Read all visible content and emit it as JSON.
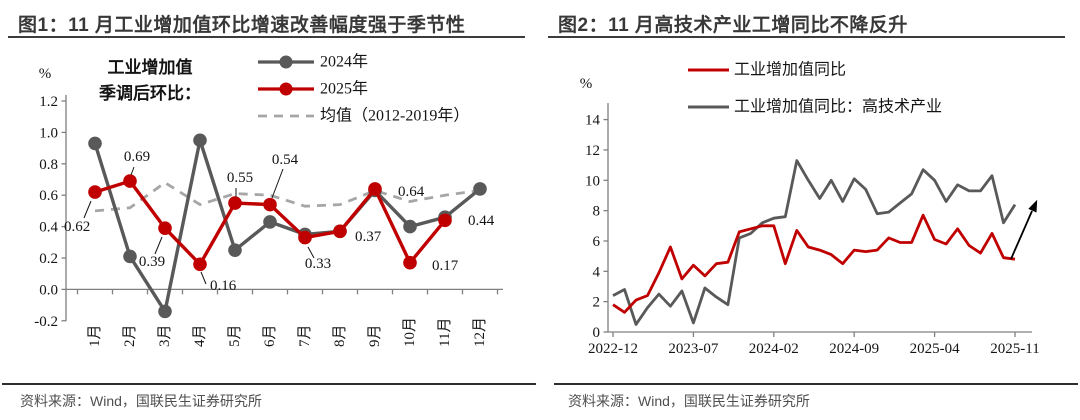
{
  "figure1": {
    "title": "图1：11 月工业增加值环比增速改善幅度强于季节性",
    "source": "资料来源：Wind，国联民生证券研究所"
  },
  "figure2": {
    "title": "图2：11 月高技术产业工增同比不降反升",
    "source": "资料来源：Wind，国联民生证券研究所"
  },
  "colors": {
    "red": "#C00000",
    "gray": "#595959",
    "mean_gray": "#A6A6A6",
    "axis": "#808080",
    "label_text": "#141414",
    "title_text": "#383838",
    "source_text": "#4F4F4F",
    "rule": "#2E2E2E",
    "arrow": "#000000"
  },
  "chart_data": [
    {
      "type": "line",
      "title": "工业增加值季调后环比",
      "unit_label": "%",
      "annotation_lines": [
        "工业增加值",
        "季调后环比："
      ],
      "categories": [
        "1月",
        "2月",
        "3月",
        "4月",
        "5月",
        "6月",
        "7月",
        "8月",
        "9月",
        "10月",
        "11月",
        "12月"
      ],
      "ylim": [
        -0.2,
        1.2
      ],
      "y_ticks": [
        "1.2",
        "1.0",
        "0.8",
        "0.6",
        "0.4",
        "0.2",
        "0.0",
        "-0.2"
      ],
      "grid": false,
      "legend_position": "top",
      "series": [
        {
          "name": "2024年",
          "color": "#595959",
          "marker": "circle",
          "line_style": "solid",
          "values": [
            0.93,
            0.21,
            -0.14,
            0.95,
            0.25,
            0.43,
            0.35,
            0.37,
            0.63,
            0.4,
            0.46,
            0.64
          ]
        },
        {
          "name": "2025年",
          "color": "#C00000",
          "marker": "circle",
          "line_style": "solid",
          "values": [
            0.62,
            0.69,
            0.39,
            0.16,
            0.55,
            0.54,
            0.33,
            0.37,
            0.64,
            0.17,
            0.44
          ],
          "point_labels": [
            "0.62",
            "0.69",
            "0.39",
            "0.16",
            "0.55",
            "0.54",
            "0.33",
            "0.37",
            "0.64",
            "0.17",
            "0.44"
          ]
        },
        {
          "name": "均值（2012-2019年）",
          "color": "#A6A6A6",
          "marker": "none",
          "line_style": "dashed",
          "values": [
            0.5,
            0.52,
            0.68,
            0.54,
            0.61,
            0.6,
            0.53,
            0.54,
            0.63,
            0.56,
            0.6,
            0.63
          ]
        }
      ]
    },
    {
      "type": "line",
      "title": "工业增加值同比与高技术产业工业增加值同比",
      "unit_label": "%",
      "n_points": 36,
      "x_start": "2022-12",
      "x_end": "2025-11",
      "x_tick_labels": [
        "2022-12",
        "2023-07",
        "2024-02",
        "2024-09",
        "2025-04",
        "2025-11"
      ],
      "x_tick_indices": [
        0,
        7,
        14,
        21,
        28,
        35
      ],
      "ylim": [
        0,
        14
      ],
      "y_ticks": [
        "14",
        "12",
        "10",
        "8",
        "6",
        "4",
        "2",
        "0"
      ],
      "grid": false,
      "legend_position": "top",
      "end_arrow": true,
      "series": [
        {
          "name": "工业增加值同比",
          "color": "#C00000",
          "marker": "none",
          "line_style": "solid",
          "values": [
            1.8,
            1.3,
            2.1,
            2.4,
            3.9,
            5.6,
            3.5,
            4.4,
            3.7,
            4.5,
            4.6,
            6.6,
            6.8,
            7.0,
            7.0,
            4.5,
            6.7,
            5.6,
            5.4,
            5.1,
            4.5,
            5.4,
            5.3,
            5.4,
            6.2,
            5.9,
            5.9,
            7.7,
            6.1,
            5.8,
            6.8,
            5.7,
            5.2,
            6.5,
            4.9,
            4.8
          ]
        },
        {
          "name": "工业增加值同比：高技术产业",
          "color": "#595959",
          "marker": "none",
          "line_style": "solid",
          "values": [
            2.4,
            2.8,
            0.5,
            1.6,
            2.5,
            1.7,
            2.7,
            0.6,
            2.9,
            2.3,
            1.8,
            6.2,
            6.5,
            7.2,
            7.5,
            7.6,
            11.3,
            10.0,
            8.8,
            10.0,
            8.6,
            10.1,
            9.4,
            7.8,
            7.9,
            8.5,
            9.1,
            10.7,
            10.0,
            8.6,
            9.7,
            9.3,
            9.3,
            10.3,
            7.2,
            8.4
          ]
        }
      ]
    }
  ]
}
